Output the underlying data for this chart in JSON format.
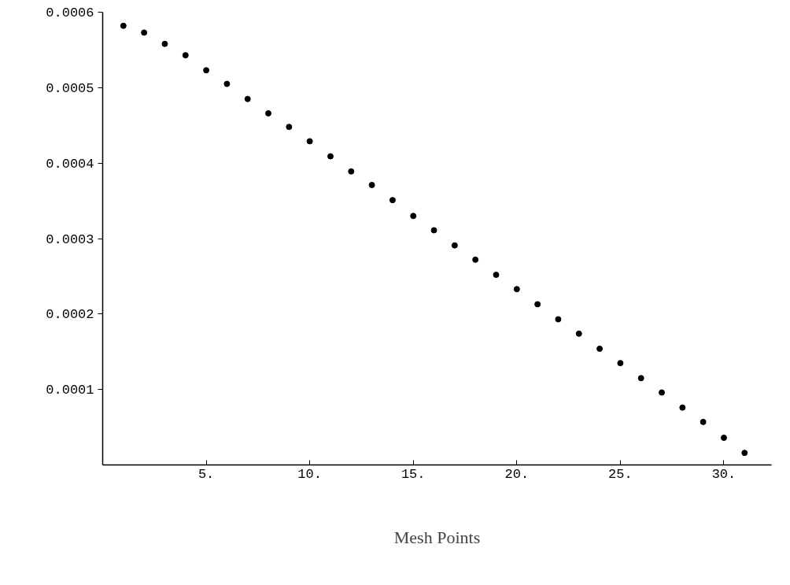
{
  "chart_data": {
    "type": "scatter",
    "xlabel": "Mesh Points",
    "x": [
      1,
      2,
      3,
      4,
      5,
      6,
      7,
      8,
      9,
      10,
      11,
      12,
      13,
      14,
      15,
      16,
      17,
      18,
      19,
      20,
      21,
      22,
      23,
      24,
      25,
      26,
      27,
      28,
      29,
      30,
      31
    ],
    "series": [
      {
        "color": "#000000",
        "values": [
          0.000582,
          0.000573,
          0.000558,
          0.000543,
          0.000523,
          0.000505,
          0.000485,
          0.000466,
          0.000448,
          0.000429,
          0.000409,
          0.000389,
          0.000371,
          0.000351,
          0.00033,
          0.000311,
          0.000291,
          0.000272,
          0.000252,
          0.000233,
          0.000213,
          0.000193,
          0.000174,
          0.000154,
          0.000135,
          0.000115,
          9.6e-05,
          7.6e-05,
          5.7e-05,
          3.6e-05,
          1.6e-05
        ]
      }
    ],
    "xlim": [
      0,
      32.3
    ],
    "ylim": [
      0,
      0.0006
    ],
    "xticks": [
      {
        "value": 5,
        "label": "5."
      },
      {
        "value": 10,
        "label": "10."
      },
      {
        "value": 15,
        "label": "15."
      },
      {
        "value": 20,
        "label": "20."
      },
      {
        "value": 25,
        "label": "25."
      },
      {
        "value": 30,
        "label": "30."
      }
    ],
    "yticks": [
      0.0001,
      0.0002,
      0.0003,
      0.0004,
      0.0005,
      0.0006
    ],
    "grid": false,
    "marker": "circle"
  }
}
